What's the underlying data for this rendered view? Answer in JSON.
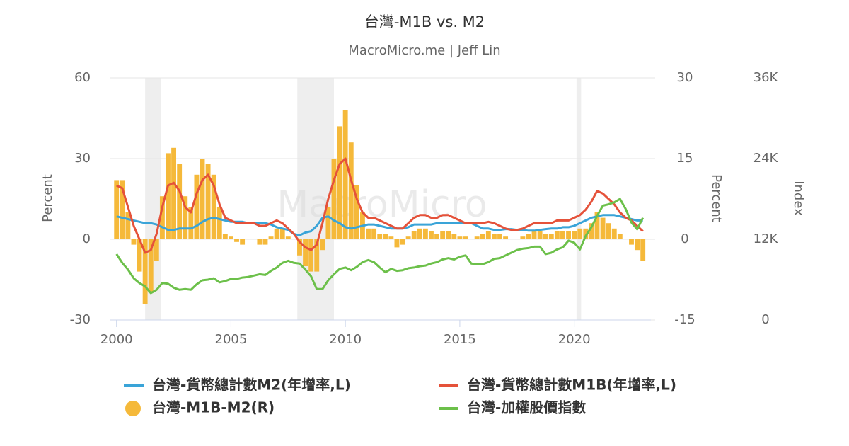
{
  "chart_data": {
    "type": "combo",
    "title": "台灣-M1B vs. M2",
    "subtitle": "MacroMicro.me | Jeff Lin",
    "watermark": "MacroMicro",
    "y_label": "Percent",
    "y2_label": "Percent",
    "y3_label": "Index",
    "xlim": [
      1999.7,
      2023.35
    ],
    "xticks": [
      2000,
      2005,
      2010,
      2015,
      2020
    ],
    "ylim": [
      -30,
      60
    ],
    "yticks": [
      -30,
      0,
      30,
      60
    ],
    "y2lim": [
      -15,
      30
    ],
    "y2ticks": [
      -15,
      0,
      15,
      30
    ],
    "y3lim": [
      0,
      36000
    ],
    "y3ticks": [
      {
        "value": 0,
        "label": "0"
      },
      {
        "value": 12000,
        "label": "12K"
      },
      {
        "value": 24000,
        "label": "24K"
      },
      {
        "value": 36000,
        "label": "36K"
      }
    ],
    "grid": true,
    "shaded_ranges": [
      [
        2001.25,
        2001.95
      ],
      [
        2007.9,
        2009.5
      ],
      [
        2020.1,
        2020.3
      ]
    ],
    "x": [
      2000,
      2000.25,
      2000.5,
      2000.75,
      2001,
      2001.25,
      2001.5,
      2001.75,
      2002,
      2002.25,
      2002.5,
      2002.75,
      2003,
      2003.25,
      2003.5,
      2003.75,
      2004,
      2004.25,
      2004.5,
      2004.75,
      2005,
      2005.25,
      2005.5,
      2005.75,
      2006,
      2006.25,
      2006.5,
      2006.75,
      2007,
      2007.25,
      2007.5,
      2007.75,
      2008,
      2008.25,
      2008.5,
      2008.75,
      2009,
      2009.25,
      2009.5,
      2009.75,
      2010,
      2010.25,
      2010.5,
      2010.75,
      2011,
      2011.25,
      2011.5,
      2011.75,
      2012,
      2012.25,
      2012.5,
      2012.75,
      2013,
      2013.25,
      2013.5,
      2013.75,
      2014,
      2014.25,
      2014.5,
      2014.75,
      2015,
      2015.25,
      2015.5,
      2015.75,
      2016,
      2016.25,
      2016.5,
      2016.75,
      2017,
      2017.25,
      2017.5,
      2017.75,
      2018,
      2018.25,
      2018.5,
      2018.75,
      2019,
      2019.25,
      2019.5,
      2019.75,
      2020,
      2020.25,
      2020.5,
      2020.75,
      2021,
      2021.25,
      2021.5,
      2021.75,
      2022,
      2022.25,
      2022.5,
      2022.75,
      2023
    ],
    "series": [
      {
        "name": "台灣-貨幣總計數M2(年增率,L)",
        "type": "line",
        "axis": "y",
        "color": "#3aa4d8",
        "values": [
          8.5,
          8,
          7.5,
          7,
          6.5,
          6,
          6,
          5.5,
          4.5,
          3.5,
          3.5,
          4,
          4,
          4,
          5,
          6.5,
          7.5,
          8,
          7.5,
          7,
          6.5,
          6.5,
          6.5,
          6,
          6,
          6,
          6,
          5.5,
          4.5,
          4,
          3.5,
          2,
          1.5,
          2.5,
          3,
          5,
          8,
          8.5,
          7,
          6,
          4.5,
          4,
          4.5,
          5,
          5.5,
          5.5,
          5,
          4.5,
          4,
          4,
          4,
          4.5,
          5.5,
          5.5,
          5.5,
          5.5,
          6,
          6,
          6,
          6,
          6,
          6,
          6,
          5,
          4,
          4,
          3.5,
          3.5,
          3.8,
          3.8,
          3.5,
          3.5,
          3.2,
          3.2,
          3.5,
          3.8,
          4,
          4,
          4.5,
          4.5,
          5,
          6,
          7,
          8,
          8.5,
          9,
          9,
          9,
          8.5,
          8,
          7.5,
          7,
          7
        ]
      },
      {
        "name": "台灣-貨幣總計數M1B(年增率,L)",
        "type": "line",
        "axis": "y",
        "color": "#e5523a",
        "values": [
          20,
          19,
          12,
          5,
          0,
          -5,
          -4,
          2,
          12,
          20,
          21,
          18,
          12,
          10,
          17,
          22,
          24,
          20,
          13,
          8,
          7,
          6,
          6,
          6,
          6,
          5,
          5,
          6,
          7,
          6,
          4,
          2,
          -1,
          -3,
          -4,
          -2,
          6,
          15,
          22,
          28,
          30,
          22,
          15,
          10,
          8,
          8,
          7,
          6,
          5,
          4,
          4,
          6,
          8,
          9,
          9,
          8,
          8,
          9,
          9,
          8,
          7,
          6,
          6,
          6,
          6,
          6.5,
          6,
          5,
          4,
          3.5,
          3.5,
          4,
          5,
          6,
          6,
          6,
          6,
          7,
          7,
          7,
          8,
          9,
          11,
          14,
          18,
          17,
          15,
          13,
          10,
          8,
          7,
          5,
          3
        ]
      },
      {
        "name": "台灣-M1B-M2(R)",
        "type": "bar",
        "axis": "y2",
        "color": "#f5b93a",
        "values": [
          11,
          11,
          5,
          -1,
          -6,
          -12,
          -10,
          -4,
          8,
          16,
          17,
          14,
          8,
          6,
          12,
          15,
          14,
          12,
          6,
          1,
          0.5,
          -0.5,
          -1,
          0,
          0,
          -1,
          -1,
          0.5,
          2,
          2,
          0.5,
          0,
          -3,
          -5,
          -6,
          -6,
          -2,
          6,
          15,
          21,
          24,
          18,
          10,
          5,
          2,
          2,
          1,
          1,
          0.5,
          -1.5,
          -1,
          0.5,
          1.5,
          2,
          2,
          1.5,
          1,
          1.5,
          1.5,
          1,
          0.5,
          0.5,
          0,
          0.5,
          1,
          1.5,
          1,
          1,
          0.5,
          0,
          0,
          0.5,
          1,
          1.5,
          1.5,
          1,
          1,
          1.5,
          1.5,
          1.5,
          1.5,
          2,
          2,
          3,
          5,
          4,
          3,
          2,
          1,
          0,
          -1,
          -2,
          -4
        ]
      },
      {
        "name": "台灣-加權股價指數",
        "type": "line",
        "axis": "y3",
        "color": "#6cc04a",
        "values": [
          9800,
          8500,
          7500,
          6200,
          5500,
          5000,
          4000,
          4500,
          5500,
          5400,
          4800,
          4500,
          4600,
          4500,
          5300,
          5900,
          6000,
          6200,
          5600,
          5800,
          6100,
          6100,
          6300,
          6400,
          6600,
          6800,
          6700,
          7300,
          7800,
          8500,
          8800,
          8500,
          8400,
          7500,
          6500,
          4600,
          4600,
          5900,
          6800,
          7600,
          7800,
          7400,
          7900,
          8600,
          8900,
          8600,
          7800,
          7100,
          7600,
          7300,
          7400,
          7700,
          7800,
          8000,
          8100,
          8400,
          8600,
          9000,
          9200,
          9000,
          9400,
          9600,
          8400,
          8300,
          8300,
          8600,
          9100,
          9200,
          9600,
          10000,
          10400,
          10600,
          10700,
          10900,
          10900,
          9800,
          10000,
          10500,
          10800,
          11800,
          11500,
          10500,
          12500,
          13800,
          15500,
          17000,
          17200,
          17500,
          18000,
          16500,
          14500,
          13500,
          15200
        ]
      }
    ]
  }
}
